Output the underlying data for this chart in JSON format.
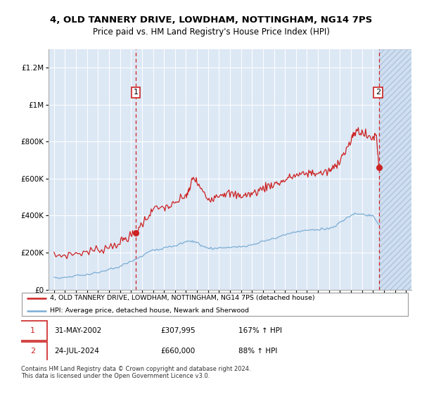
{
  "title": "4, OLD TANNERY DRIVE, LOWDHAM, NOTTINGHAM, NG14 7PS",
  "subtitle": "Price paid vs. HM Land Registry's House Price Index (HPI)",
  "legend_line1": "4, OLD TANNERY DRIVE, LOWDHAM, NOTTINGHAM, NG14 7PS (detached house)",
  "legend_line2": "HPI: Average price, detached house, Newark and Sherwood",
  "annotation1_date": "31-MAY-2002",
  "annotation1_price": "£307,995",
  "annotation1_hpi": "167% ↑ HPI",
  "annotation2_date": "24-JUL-2024",
  "annotation2_price": "£660,000",
  "annotation2_hpi": "88% ↑ HPI",
  "footer": "Contains HM Land Registry data © Crown copyright and database right 2024.\nThis data is licensed under the Open Government Licence v3.0.",
  "background_color": "#dde8f5",
  "red_line_color": "#cc2222",
  "blue_line_color": "#7aadd4",
  "annotation_box_color": "#cc2222",
  "sale1_x": 2002.42,
  "sale1_y": 307995,
  "sale2_x": 2024.56,
  "sale2_y": 660000,
  "xlim": [
    1994.5,
    2027.5
  ],
  "ylim": [
    0,
    1300000
  ],
  "yticks": [
    0,
    200000,
    400000,
    600000,
    800000,
    1000000,
    1200000
  ],
  "xticks": [
    1995,
    1996,
    1997,
    1998,
    1999,
    2000,
    2001,
    2002,
    2003,
    2004,
    2005,
    2006,
    2007,
    2008,
    2009,
    2010,
    2011,
    2012,
    2013,
    2014,
    2015,
    2016,
    2017,
    2018,
    2019,
    2020,
    2021,
    2022,
    2023,
    2024,
    2025,
    2026,
    2027
  ]
}
